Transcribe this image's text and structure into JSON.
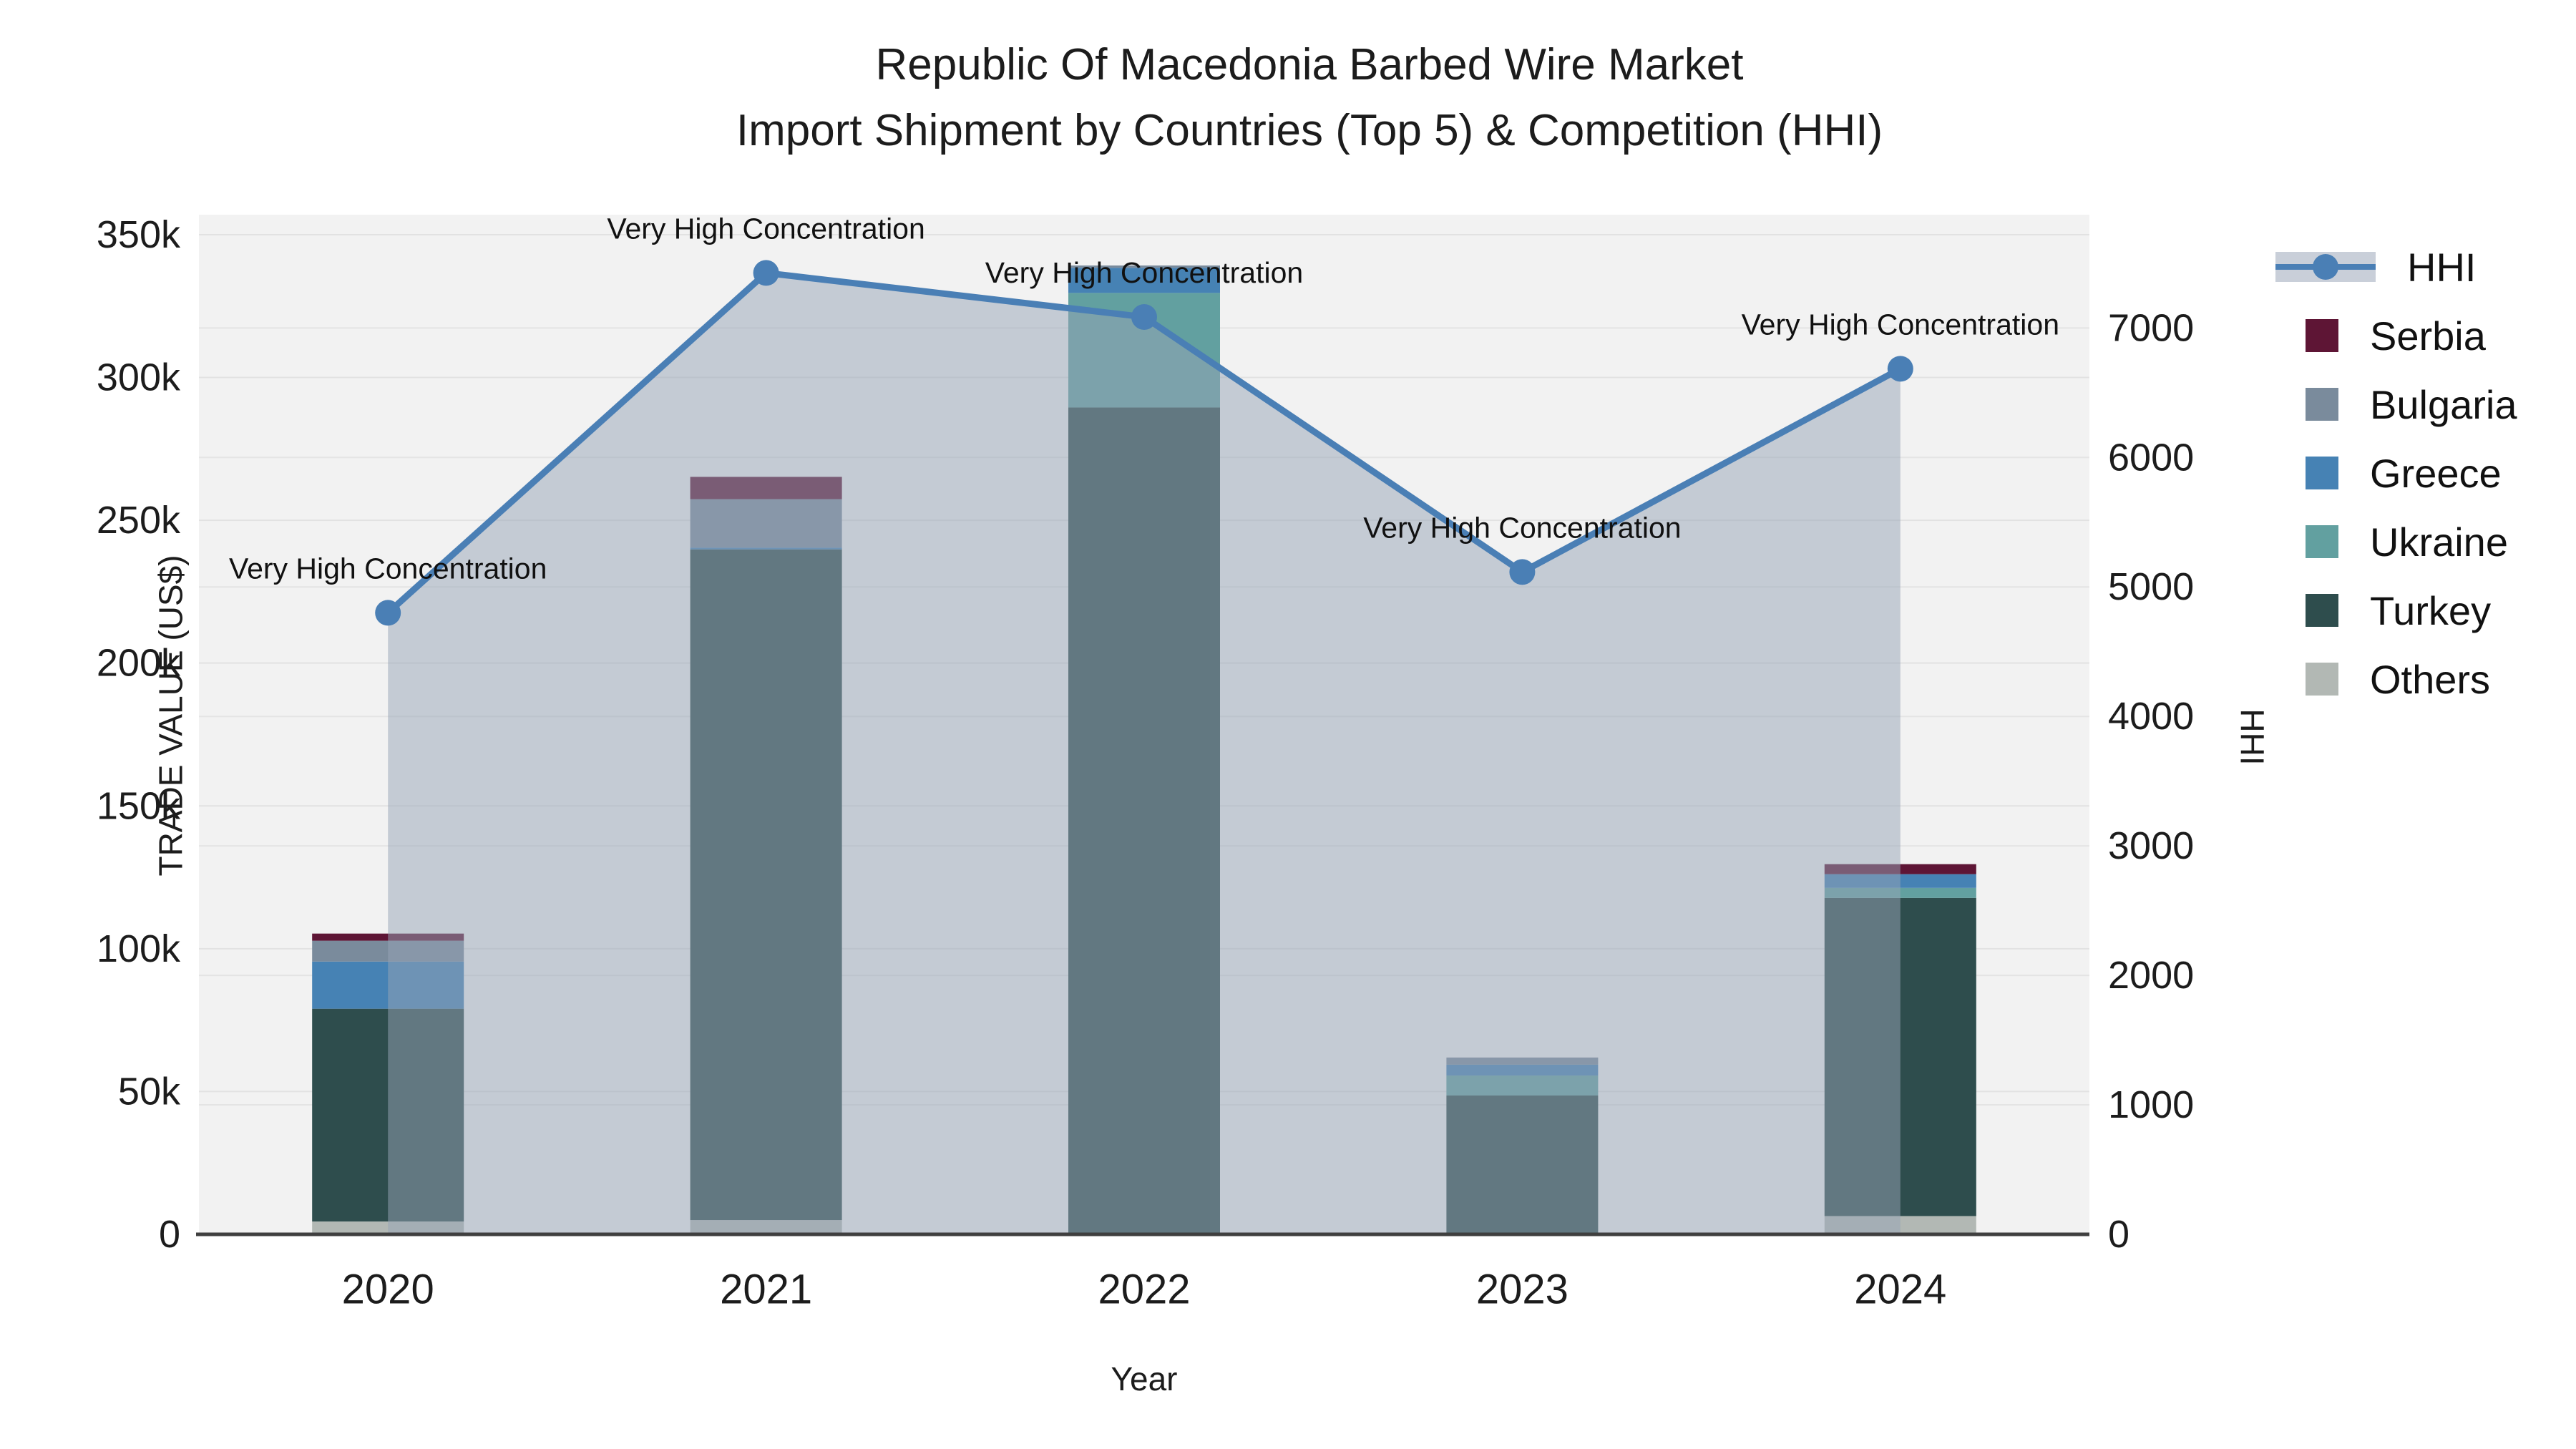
{
  "title": {
    "line1": "Republic Of Macedonia Barbed Wire Market",
    "line2": "Import Shipment by Countries (Top 5) & Competition (HHI)"
  },
  "axes": {
    "x_label": "Year",
    "y_left_label": "TRADE VALUE (US$)",
    "y_right_label": "HHI",
    "y_left_ticks": [
      {
        "label": "0",
        "value": 0
      },
      {
        "label": "50k",
        "value": 50000
      },
      {
        "label": "100k",
        "value": 100000
      },
      {
        "label": "150k",
        "value": 150000
      },
      {
        "label": "200k",
        "value": 200000
      },
      {
        "label": "250k",
        "value": 250000
      },
      {
        "label": "300k",
        "value": 300000
      },
      {
        "label": "350k",
        "value": 350000
      }
    ],
    "y_right_ticks": [
      {
        "label": "0",
        "value": 0
      },
      {
        "label": "1000",
        "value": 1000
      },
      {
        "label": "2000",
        "value": 2000
      },
      {
        "label": "3000",
        "value": 3000
      },
      {
        "label": "4000",
        "value": 4000
      },
      {
        "label": "5000",
        "value": 5000
      },
      {
        "label": "6000",
        "value": 6000
      },
      {
        "label": "7000",
        "value": 7000
      }
    ]
  },
  "legend": [
    {
      "label": "HHI",
      "type": "line",
      "color": "#4a7fb5"
    },
    {
      "label": "Serbia",
      "type": "swatch",
      "color": "#5e1535"
    },
    {
      "label": "Bulgaria",
      "type": "swatch",
      "color": "#7a8b9c"
    },
    {
      "label": "Greece",
      "type": "swatch",
      "color": "#4682b4"
    },
    {
      "label": "Ukraine",
      "type": "swatch",
      "color": "#62a0a0"
    },
    {
      "label": "Turkey",
      "type": "swatch",
      "color": "#2e4d4d"
    },
    {
      "label": "Others",
      "type": "swatch",
      "color": "#b2b8b4"
    }
  ],
  "chart_data": {
    "type": "bar",
    "subtype": "stacked-bars-with-line",
    "title": "Republic Of Macedonia Barbed Wire Market — Import Shipment by Countries (Top 5) & Competition (HHI)",
    "xlabel": "Year",
    "ylabel_left": "TRADE VALUE (US$)",
    "ylabel_right": "HHI",
    "categories": [
      "2020",
      "2021",
      "2022",
      "2023",
      "2024"
    ],
    "bar_series": [
      {
        "name": "Others",
        "color": "#b2b8b4",
        "values": [
          4500,
          5000,
          0,
          500,
          6400
        ]
      },
      {
        "name": "Turkey",
        "color": "#2e4d4d",
        "values": [
          74500,
          234800,
          289500,
          48100,
          111400
        ]
      },
      {
        "name": "Ukraine",
        "color": "#62a0a0",
        "values": [
          0,
          0,
          40100,
          7000,
          3500
        ]
      },
      {
        "name": "Greece",
        "color": "#4682b4",
        "values": [
          16500,
          600,
          8800,
          3800,
          4800
        ]
      },
      {
        "name": "Bulgaria",
        "color": "#7a8b9c",
        "values": [
          7300,
          17000,
          800,
          2500,
          0
        ]
      },
      {
        "name": "Serbia",
        "color": "#5e1535",
        "values": [
          2500,
          7800,
          0,
          0,
          3500
        ]
      }
    ],
    "bar_totals": [
      105300,
      265200,
      339200,
      61900,
      129600
    ],
    "line_series": {
      "name": "HHI",
      "color": "#4a7fb5",
      "area_fill": "rgba(150,163,182,0.5)",
      "values": [
        4800,
        7425,
        7085,
        5115,
        6685
      ]
    },
    "annotations": [
      {
        "text": "Very High Concentration",
        "category": "2020"
      },
      {
        "text": "Very High Concentration",
        "category": "2021"
      },
      {
        "text": "Very High Concentration",
        "category": "2022"
      },
      {
        "text": "Very High Concentration",
        "category": "2023"
      },
      {
        "text": "Very High Concentration",
        "category": "2024"
      }
    ],
    "ylim_left": [
      0,
      357000
    ],
    "ylim_right": [
      0,
      7875
    ],
    "grid": true,
    "legend_position": "right"
  }
}
